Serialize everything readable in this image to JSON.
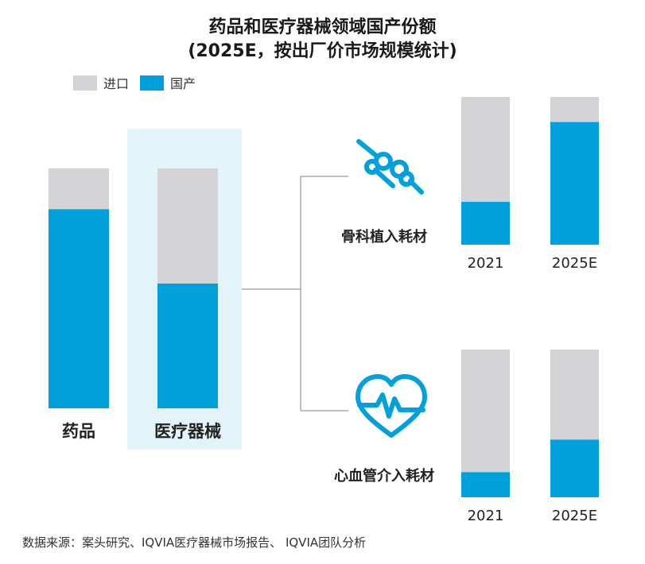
{
  "title_line1": "药品和医疗器械领域国产份额",
  "title_line2": "(2025E，按出厂价市场规模统计)",
  "legend": [
    {
      "label": "进口",
      "color": "#d4d4d6"
    },
    {
      "label": "国产",
      "color": "#00a0dd"
    }
  ],
  "colors": {
    "import": "#d4d4d6",
    "domestic": "#00a0dd",
    "highlight": "#e2f3fa",
    "connector": "#aaaaaa"
  },
  "source": "数据来源：案头研究、IQVIA医疗器械市场报告、 IQVIA团队分析",
  "icons": {
    "ortho": "bone-joint-icon",
    "cardio": "heart-pulse-icon"
  },
  "chart_data": [
    {
      "type": "bar",
      "stacked": true,
      "percent": true,
      "categories": [
        "药品",
        "医疗器械"
      ],
      "series": [
        {
          "name": "国产",
          "values": [
            83,
            52
          ]
        },
        {
          "name": "进口",
          "values": [
            17,
            48
          ]
        }
      ],
      "highlighted_category": "医疗器械"
    },
    {
      "type": "bar",
      "stacked": true,
      "percent": true,
      "label": "骨科植入耗材",
      "categories": [
        "2021",
        "2025E"
      ],
      "series": [
        {
          "name": "国产",
          "values": [
            29,
            83
          ]
        },
        {
          "name": "进口",
          "values": [
            71,
            17
          ]
        }
      ]
    },
    {
      "type": "bar",
      "stacked": true,
      "percent": true,
      "label": "心血管介入耗材",
      "categories": [
        "2021",
        "2025E"
      ],
      "series": [
        {
          "name": "国产",
          "values": [
            17,
            39
          ]
        },
        {
          "name": "进口",
          "values": [
            83,
            61
          ]
        }
      ]
    }
  ]
}
